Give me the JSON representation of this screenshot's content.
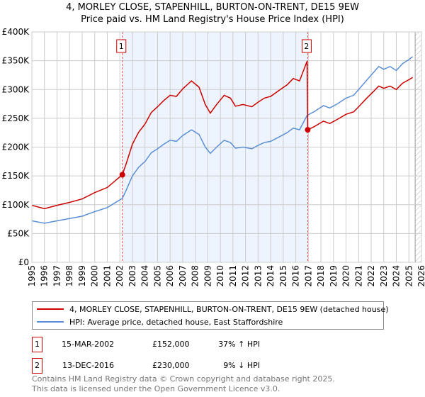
{
  "title": "4, MORLEY CLOSE, STAPENHILL, BURTON-ON-TRENT, DE15 9EW",
  "subtitle": "Price paid vs. HM Land Registry's House Price Index (HPI)",
  "legend": [
    {
      "label": "4, MORLEY CLOSE, STAPENHILL, BURTON-ON-TRENT, DE15 9EW (detached house)",
      "color": "#cc0000"
    },
    {
      "label": "HPI: Average price, detached house, East Staffordshire",
      "color": "#5b8fd6"
    }
  ],
  "sales": [
    {
      "num": "1",
      "date": "15-MAR-2002",
      "price": "£152,000",
      "hpi": "37% ↑ HPI"
    },
    {
      "num": "2",
      "date": "13-DEC-2016",
      "price": "£230,000",
      "hpi": "9% ↓ HPI"
    }
  ],
  "footer": [
    "Contains HM Land Registry data © Crown copyright and database right 2025.",
    "This data is licensed under the Open Government Licence v3.0."
  ],
  "chart_data": {
    "type": "line",
    "xlim": [
      1995,
      2026
    ],
    "ylim": [
      0,
      400000
    ],
    "yticks": [
      0,
      50000,
      100000,
      150000,
      200000,
      250000,
      300000,
      350000,
      400000
    ],
    "ytick_labels": [
      "£0",
      "£50K",
      "£100K",
      "£150K",
      "£200K",
      "£250K",
      "£300K",
      "£350K",
      "£400K"
    ],
    "xticks": [
      "1995",
      "1996",
      "1997",
      "1998",
      "1999",
      "2000",
      "2001",
      "2002",
      "2003",
      "2004",
      "2005",
      "2006",
      "2007",
      "2008",
      "2009",
      "2010",
      "2011",
      "2012",
      "2013",
      "2014",
      "2015",
      "2016",
      "2017",
      "2018",
      "2019",
      "2020",
      "2021",
      "2022",
      "2023",
      "2024",
      "2025",
      "2026"
    ],
    "grid": true,
    "shaded_range": [
      2002.2,
      2016.95
    ],
    "forecast_hatch_from": 2025.5,
    "series": [
      {
        "name": "4, MORLEY CLOSE, STAPENHILL, BURTON-ON-TRENT, DE15 9EW (detached house)",
        "color": "#cc0000",
        "x": [
          1995,
          1996,
          1997,
          1998,
          1999,
          2000,
          2001,
          2002.2,
          2002.5,
          2003,
          2003.5,
          2004,
          2004.5,
          2005,
          2005.5,
          2006,
          2006.5,
          2007,
          2007.7,
          2008.3,
          2008.8,
          2009.2,
          2009.7,
          2010.3,
          2010.8,
          2011.2,
          2011.8,
          2012.5,
          2013,
          2013.5,
          2014,
          2014.7,
          2015.3,
          2015.8,
          2016.3,
          2016.9,
          2016.95,
          2017.5,
          2018.2,
          2018.7,
          2019.3,
          2020,
          2020.6,
          2021,
          2021.6,
          2022.2,
          2022.6,
          2023,
          2023.5,
          2024,
          2024.5,
          2025,
          2025.3
        ],
        "y": [
          99,
          93,
          99,
          104,
          110,
          121,
          130,
          152,
          171,
          205,
          226,
          240,
          260,
          270,
          281,
          290,
          288,
          301,
          315,
          304,
          274,
          259,
          274,
          290,
          285,
          271,
          274,
          270,
          278,
          285,
          288,
          299,
          308,
          319,
          315,
          349,
          230,
          236,
          245,
          241,
          248,
          257,
          261,
          270,
          284,
          297,
          306,
          302,
          306,
          300,
          311,
          317,
          321
        ]
      },
      {
        "name": "HPI: Average price, detached house, East Staffordshire",
        "color": "#5b8fd6",
        "x": [
          1995,
          1996,
          1997,
          1998,
          1999,
          2000,
          2001,
          2002.2,
          2002.5,
          2003,
          2003.5,
          2004,
          2004.5,
          2005,
          2005.5,
          2006,
          2006.5,
          2007,
          2007.7,
          2008.3,
          2008.8,
          2009.2,
          2009.7,
          2010.3,
          2010.8,
          2011.2,
          2011.8,
          2012.5,
          2013,
          2013.5,
          2014,
          2014.7,
          2015.3,
          2015.8,
          2016.3,
          2016.9,
          2017.5,
          2018.2,
          2018.7,
          2019.3,
          2020,
          2020.6,
          2021,
          2021.6,
          2022.2,
          2022.6,
          2023,
          2023.5,
          2024,
          2024.5,
          2025,
          2025.3
        ],
        "y": [
          72,
          68,
          72,
          76,
          80,
          88,
          95,
          111,
          125,
          150,
          165,
          175,
          190,
          197,
          205,
          212,
          210,
          220,
          230,
          222,
          200,
          189,
          200,
          212,
          208,
          198,
          200,
          197,
          203,
          208,
          210,
          218,
          225,
          233,
          230,
          255,
          262,
          272,
          268,
          275,
          285,
          290,
          300,
          315,
          330,
          340,
          335,
          340,
          333,
          345,
          352,
          357
        ]
      }
    ],
    "y_units": "thousands GBP",
    "annotations": [
      {
        "label": "1",
        "x": 2002.2,
        "y": 152
      },
      {
        "label": "2",
        "x": 2016.95,
        "y": 230
      }
    ]
  }
}
